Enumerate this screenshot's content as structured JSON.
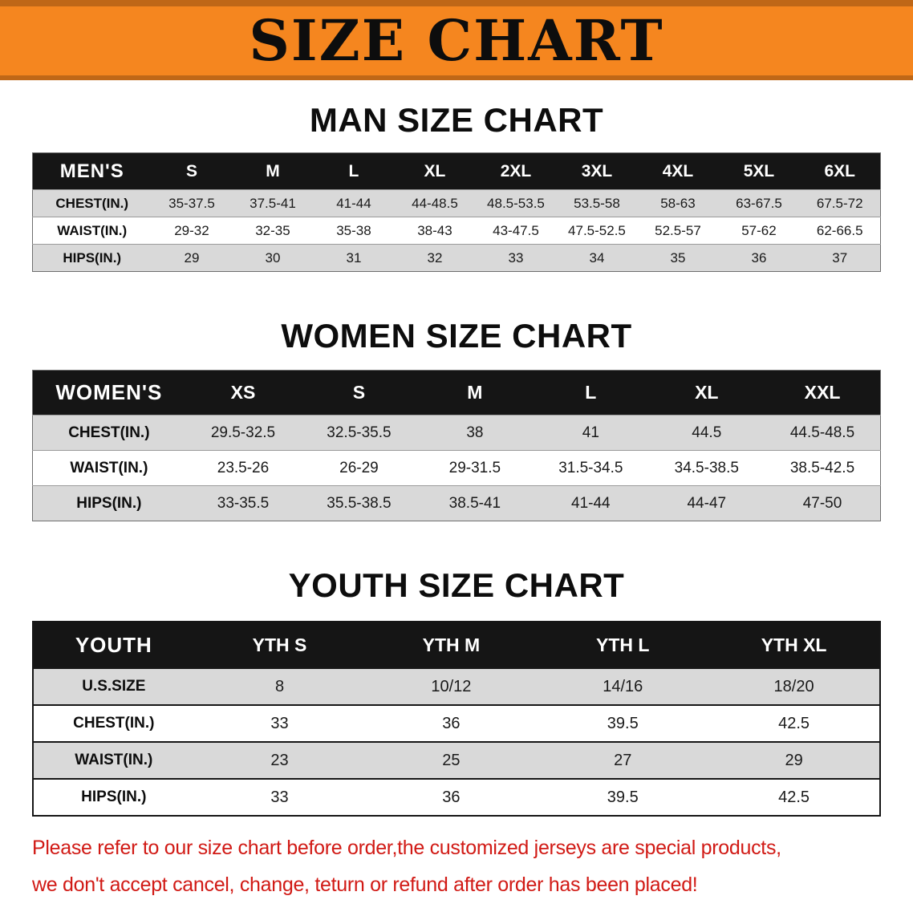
{
  "banner": {
    "title": "SIZE CHART",
    "bg_color": "#f5861f"
  },
  "sections": [
    {
      "id": "men",
      "heading": "MAN SIZE CHART",
      "table": {
        "header": [
          "MEN'S",
          "S",
          "M",
          "L",
          "XL",
          "2XL",
          "3XL",
          "4XL",
          "5XL",
          "6XL"
        ],
        "rows": [
          {
            "label": "CHEST(IN.)",
            "values": [
              "35-37.5",
              "37.5-41",
              "41-44",
              "44-48.5",
              "48.5-53.5",
              "53.5-58",
              "58-63",
              "63-67.5",
              "67.5-72"
            ]
          },
          {
            "label": "WAIST(IN.)",
            "values": [
              "29-32",
              "32-35",
              "35-38",
              "38-43",
              "43-47.5",
              "47.5-52.5",
              "52.5-57",
              "57-62",
              "62-66.5"
            ]
          },
          {
            "label": "HIPS(IN.)",
            "values": [
              "29",
              "30",
              "31",
              "32",
              "33",
              "34",
              "35",
              "36",
              "37"
            ]
          }
        ]
      }
    },
    {
      "id": "women",
      "heading": "WOMEN SIZE CHART",
      "table": {
        "header": [
          "WOMEN'S",
          "XS",
          "S",
          "M",
          "L",
          "XL",
          "XXL"
        ],
        "rows": [
          {
            "label": "CHEST(IN.)",
            "values": [
              "29.5-32.5",
              "32.5-35.5",
              "38",
              "41",
              "44.5",
              "44.5-48.5"
            ]
          },
          {
            "label": "WAIST(IN.)",
            "values": [
              "23.5-26",
              "26-29",
              "29-31.5",
              "31.5-34.5",
              "34.5-38.5",
              "38.5-42.5"
            ]
          },
          {
            "label": "HIPS(IN.)",
            "values": [
              "33-35.5",
              "35.5-38.5",
              "38.5-41",
              "41-44",
              "44-47",
              "47-50"
            ]
          }
        ]
      }
    },
    {
      "id": "youth",
      "heading": "YOUTH SIZE CHART",
      "table": {
        "header": [
          "YOUTH",
          "YTH S",
          "YTH M",
          "YTH L",
          "YTH XL"
        ],
        "rows": [
          {
            "label": "U.S.SIZE",
            "values": [
              "8",
              "10/12",
              "14/16",
              "18/20"
            ]
          },
          {
            "label": "CHEST(IN.)",
            "values": [
              "33",
              "36",
              "39.5",
              "42.5"
            ]
          },
          {
            "label": "WAIST(IN.)",
            "values": [
              "23",
              "25",
              "27",
              "29"
            ]
          },
          {
            "label": "HIPS(IN.)",
            "values": [
              "33",
              "36",
              "39.5",
              "42.5"
            ]
          }
        ]
      }
    }
  ],
  "footer": {
    "line1": "Please refer to our size chart before order,the customized jerseys are special products,",
    "line2": "we don't accept cancel, change, teturn or refund after order has been placed!",
    "text_color": "#d11a15"
  }
}
